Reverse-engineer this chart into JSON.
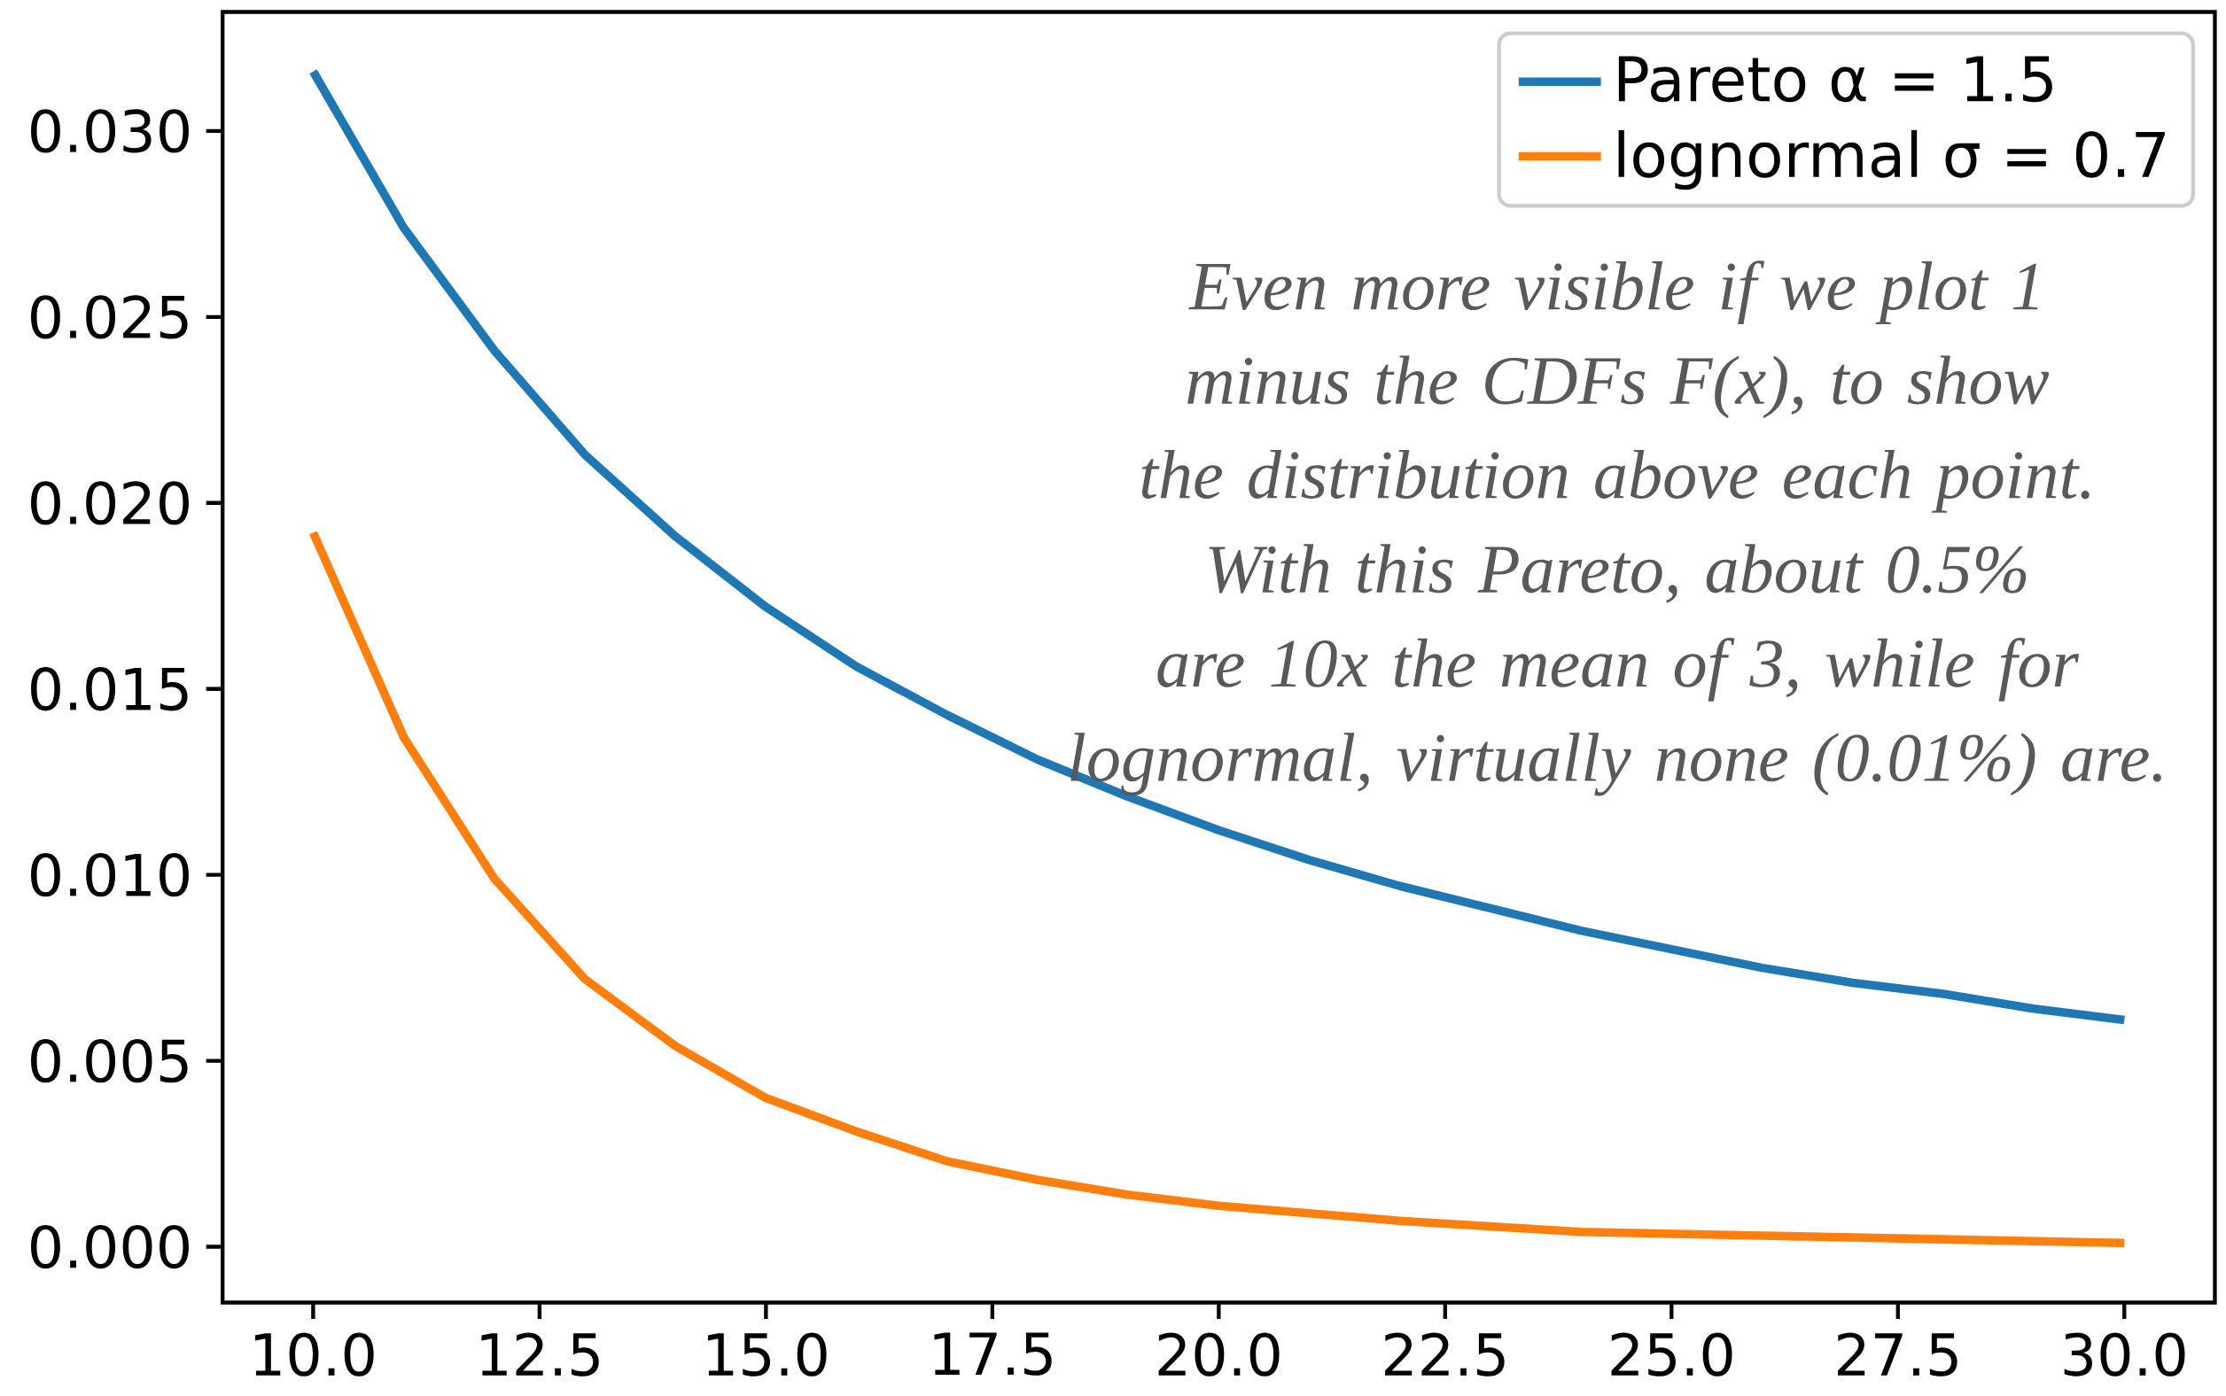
{
  "chart_data": {
    "type": "line",
    "legend": "top right",
    "xlim": [
      9,
      31
    ],
    "ylim": [
      -0.0015,
      0.0332
    ],
    "xticks": [
      {
        "value": 10,
        "label": "10.0"
      },
      {
        "value": 12.5,
        "label": "12.5"
      },
      {
        "value": 15,
        "label": "15.0"
      },
      {
        "value": 17.5,
        "label": "17.5"
      },
      {
        "value": 20,
        "label": "20.0"
      },
      {
        "value": 22.5,
        "label": "22.5"
      },
      {
        "value": 25,
        "label": "25.0"
      },
      {
        "value": 27.5,
        "label": "27.5"
      },
      {
        "value": 30,
        "label": "30.0"
      }
    ],
    "yticks": [
      {
        "value": 0,
        "label": "0.000"
      },
      {
        "value": 0.005,
        "label": "0.005"
      },
      {
        "value": 0.01,
        "label": "0.010"
      },
      {
        "value": 0.015,
        "label": "0.015"
      },
      {
        "value": 0.02,
        "label": "0.020"
      },
      {
        "value": 0.025,
        "label": "0.025"
      },
      {
        "value": 0.03,
        "label": "0.030"
      }
    ],
    "annotations": [
      "Even more visible if we plot 1 minus the CDFs F(x), to show the distribution above each point. With this Pareto, about 0.5% are 10x the mean of 3, while for lognormal, virtually none (0.01%) are."
    ],
    "series": [
      {
        "name": "Pareto α = 1.5",
        "color": "#1f77b4",
        "x": [
          10,
          11,
          12,
          13,
          14,
          15,
          16,
          17,
          18,
          19,
          20,
          21,
          22,
          23,
          24,
          25,
          26,
          27,
          28,
          29,
          30
        ],
        "values": [
          0.0316,
          0.0274,
          0.0241,
          0.0213,
          0.0191,
          0.0172,
          0.0156,
          0.0143,
          0.0131,
          0.0121,
          0.0112,
          0.0104,
          0.0097,
          0.0091,
          0.0085,
          0.008,
          0.0075,
          0.0071,
          0.0068,
          0.0064,
          0.0061
        ]
      },
      {
        "name": "lognormal σ = 0.7",
        "color": "#ff7f0e",
        "x": [
          10,
          11,
          12,
          13,
          14,
          15,
          16,
          17,
          18,
          19,
          20,
          22,
          24,
          26,
          28,
          30
        ],
        "values": [
          0.0192,
          0.0137,
          0.0099,
          0.0072,
          0.0054,
          0.004,
          0.0031,
          0.0023,
          0.0018,
          0.0014,
          0.0011,
          0.0007,
          0.0004,
          0.0003,
          0.0002,
          0.0001
        ]
      }
    ]
  }
}
